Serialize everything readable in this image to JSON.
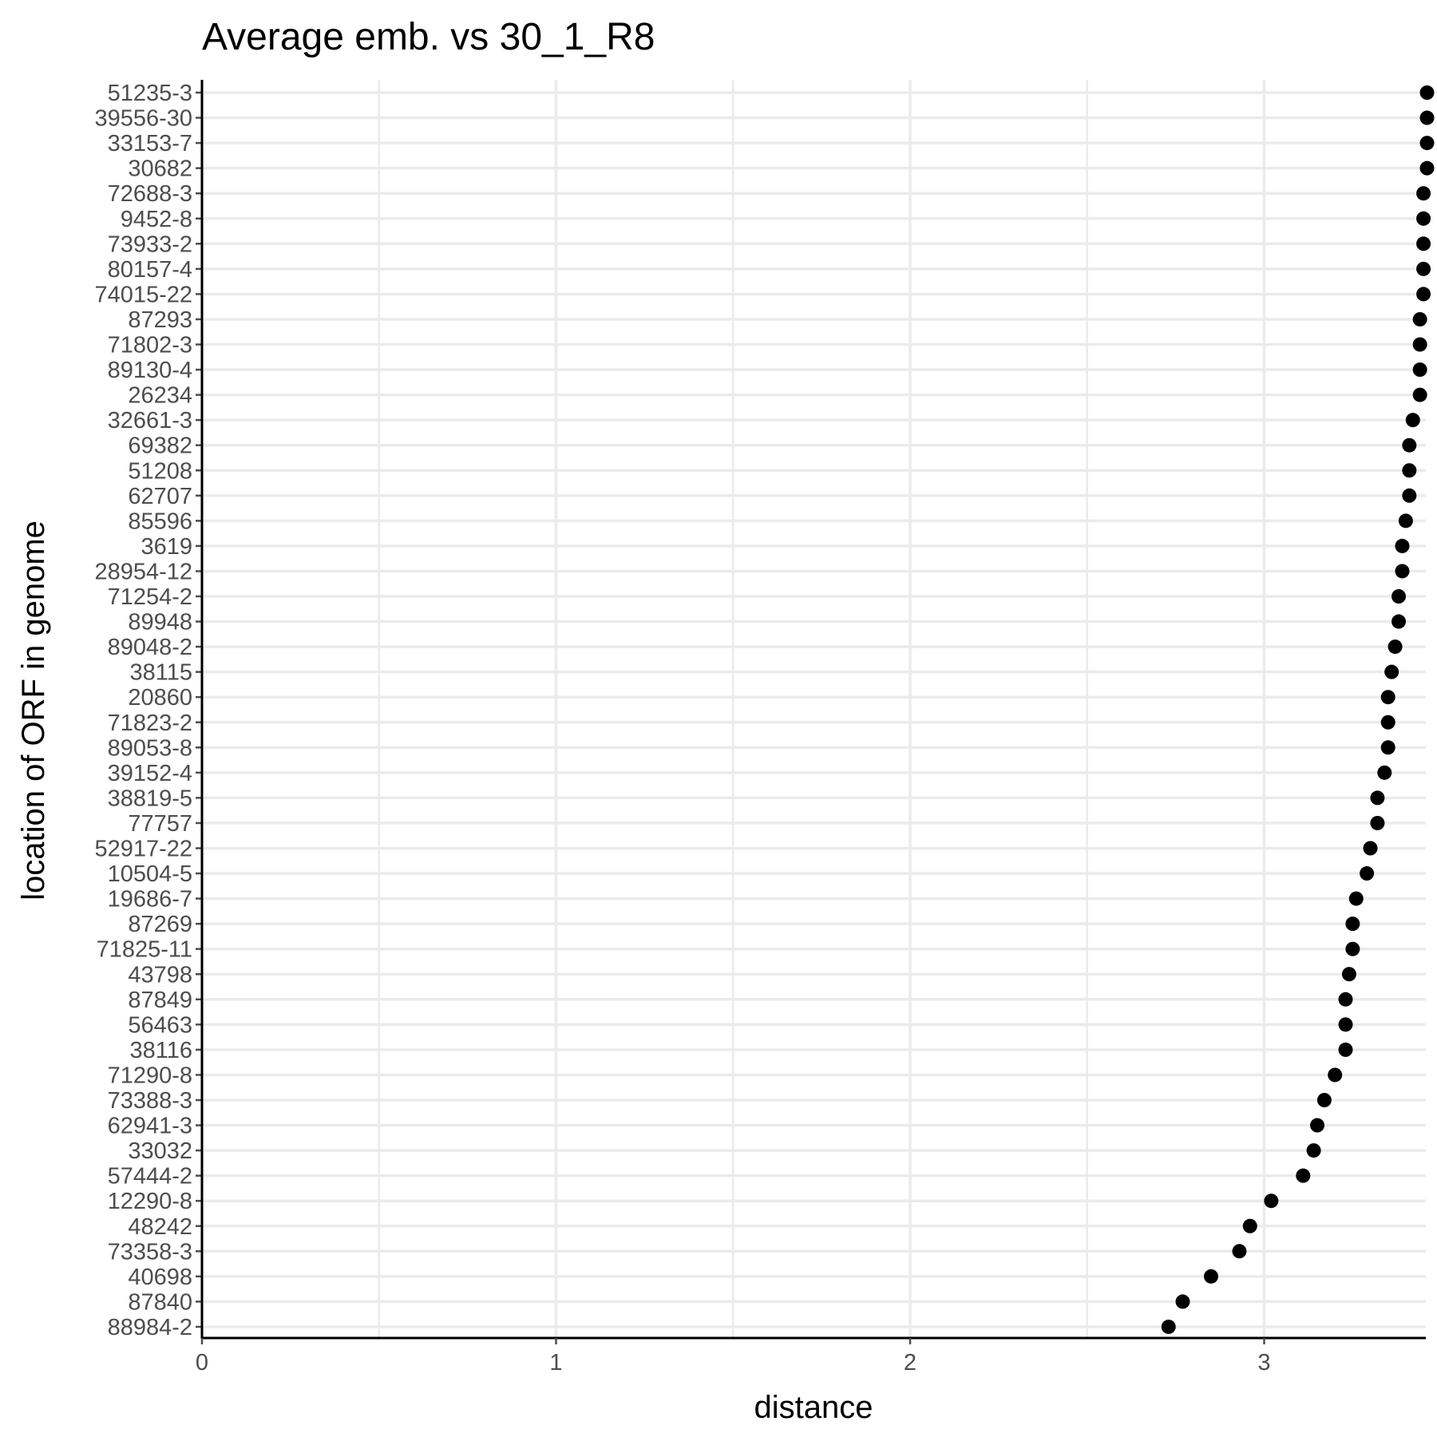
{
  "chart_data": {
    "type": "scatter",
    "title": "Average emb. vs 30_1_R8",
    "xlabel": "distance",
    "ylabel": "location of ORF in genome",
    "xlim": [
      0,
      3.46
    ],
    "xticks": [
      0,
      1,
      2,
      3
    ],
    "grid": true,
    "colors": {
      "point": "#000000",
      "grid": "#ebebeb",
      "axis": "#000000",
      "tick_text": "#4d4d4d"
    },
    "categories": [
      "51235-3",
      "39556-30",
      "33153-7",
      "30682",
      "72688-3",
      "9452-8",
      "73933-2",
      "80157-4",
      "74015-22",
      "87293",
      "71802-3",
      "89130-4",
      "26234",
      "32661-3",
      "69382",
      "51208",
      "62707",
      "85596",
      "3619",
      "28954-12",
      "71254-2",
      "89948",
      "89048-2",
      "38115",
      "20860",
      "71823-2",
      "89053-8",
      "39152-4",
      "38819-5",
      "77757",
      "52917-22",
      "10504-5",
      "19686-7",
      "87269",
      "71825-11",
      "43798",
      "87849",
      "56463",
      "38116",
      "71290-8",
      "73388-3",
      "62941-3",
      "33032",
      "57444-2",
      "12290-8",
      "48242",
      "73358-3",
      "40698",
      "87840",
      "88984-2"
    ],
    "values": [
      3.46,
      3.46,
      3.46,
      3.46,
      3.45,
      3.45,
      3.45,
      3.45,
      3.45,
      3.44,
      3.44,
      3.44,
      3.44,
      3.42,
      3.41,
      3.41,
      3.41,
      3.4,
      3.39,
      3.39,
      3.38,
      3.38,
      3.37,
      3.36,
      3.35,
      3.35,
      3.35,
      3.34,
      3.32,
      3.32,
      3.3,
      3.29,
      3.26,
      3.25,
      3.25,
      3.24,
      3.23,
      3.23,
      3.23,
      3.2,
      3.17,
      3.15,
      3.14,
      3.11,
      3.02,
      2.96,
      2.93,
      2.85,
      2.77,
      2.73
    ]
  }
}
